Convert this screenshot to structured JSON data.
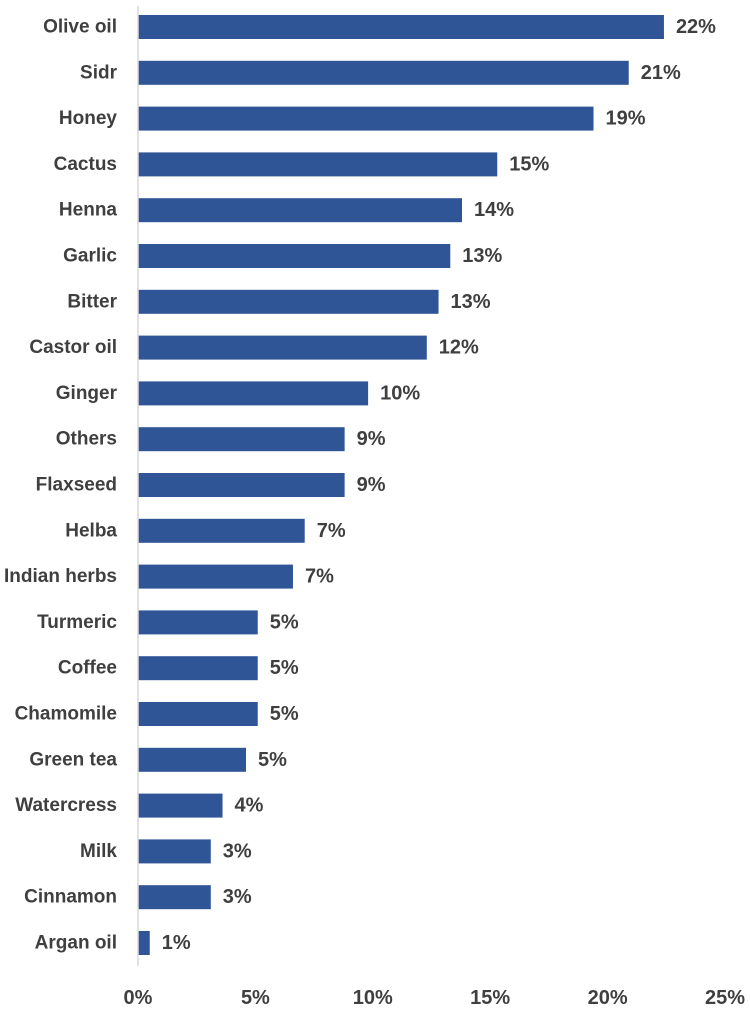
{
  "chart_data": {
    "type": "bar",
    "orientation": "horizontal",
    "title": "",
    "xlabel": "",
    "ylabel": "",
    "categories": [
      "Olive oil",
      "Sidr",
      "Honey",
      "Cactus",
      "Henna",
      "Garlic",
      "Bitter",
      "Castor oil",
      "Ginger",
      "Others",
      "Flaxseed",
      "Helba",
      "Indian herbs",
      "Turmeric",
      "Coffee",
      "Chamomile",
      "Green tea",
      "Watercress",
      "Milk",
      "Cinnamon",
      "Argan oil"
    ],
    "values": [
      22.4,
      20.9,
      19.4,
      15.3,
      13.8,
      13.3,
      12.8,
      12.3,
      9.8,
      8.8,
      8.8,
      7.1,
      6.6,
      5.1,
      5.1,
      5.1,
      4.6,
      3.6,
      3.1,
      3.1,
      0.5
    ],
    "data_labels": [
      "22%",
      "21%",
      "19%",
      "15%",
      "14%",
      "13%",
      "13%",
      "12%",
      "10%",
      "9%",
      "9%",
      "7%",
      "7%",
      "5%",
      "5%",
      "5%",
      "5%",
      "4%",
      "3%",
      "3%",
      "1%"
    ],
    "xlim": [
      0,
      25
    ],
    "x_ticks": [
      0,
      5,
      10,
      15,
      20,
      25
    ],
    "x_tick_labels": [
      "0%",
      "5%",
      "10%",
      "15%",
      "20%",
      "25%"
    ],
    "grid": false,
    "legend": "none",
    "colors": {
      "bar": "#2f5597",
      "axis": "#d9d9d9",
      "text": "#3f3f3f"
    }
  }
}
